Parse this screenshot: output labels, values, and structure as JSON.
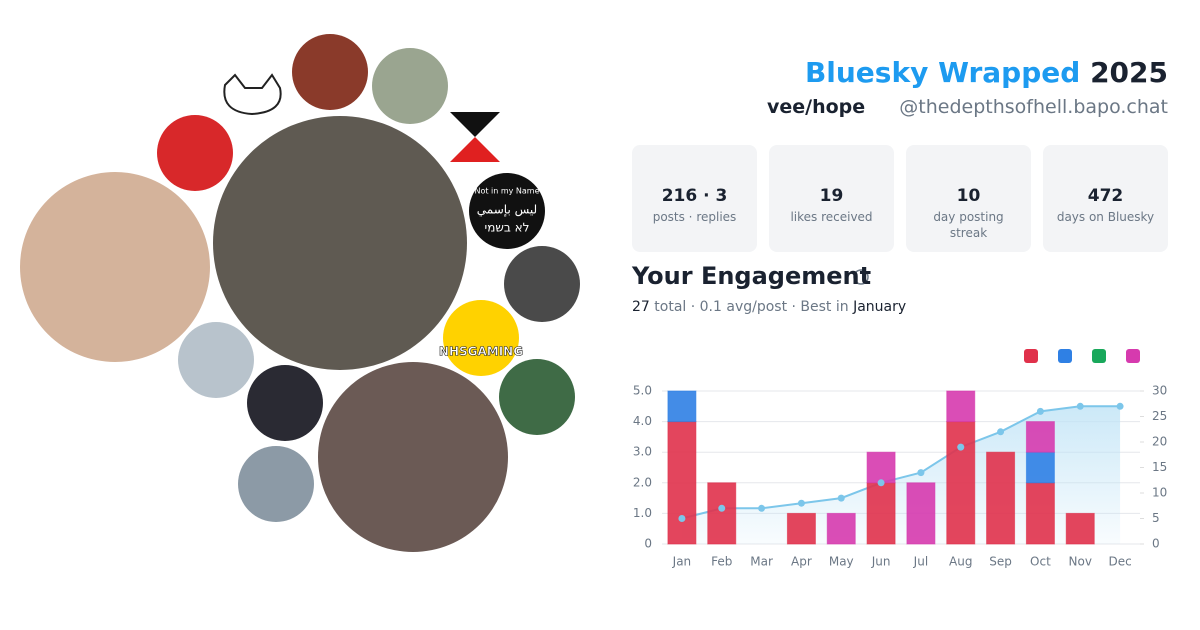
{
  "header": {
    "title_brand": "Bluesky Wrapped",
    "title_year": "2025",
    "display_name": "vee/hope",
    "handle": "@thedepthsofhell.bapo.chat"
  },
  "avatars": {
    "texts": [
      "Not in my Name",
      "ليس بإسمي",
      "לא בשמי",
      "NHSGAMING"
    ]
  },
  "stats": [
    {
      "value": "216 · 3",
      "label": "posts · replies"
    },
    {
      "value": "19",
      "label": "likes received"
    },
    {
      "value": "10",
      "label": "day posting streak"
    },
    {
      "value": "472",
      "label": "days on Bluesky"
    }
  ],
  "engagement": {
    "title": "Your Engagement",
    "total": "27",
    "summary": "total · 0.1 avg/post · Best in",
    "best": "January"
  },
  "chart_data": {
    "type": "bar",
    "categories": [
      "Jan",
      "Feb",
      "Mar",
      "Apr",
      "May",
      "Jun",
      "Jul",
      "Aug",
      "Sep",
      "Oct",
      "Nov",
      "Dec"
    ],
    "stacked": true,
    "series": [
      {
        "color": "#e0314b",
        "values": [
          4,
          2,
          0,
          1,
          0,
          2,
          0,
          4,
          3,
          2,
          1,
          0
        ]
      },
      {
        "color": "#2f80e4",
        "values": [
          1,
          0,
          0,
          0,
          0,
          0,
          0,
          0,
          0,
          1,
          0,
          0
        ]
      },
      {
        "color": "#19a85b",
        "values": [
          0,
          0,
          0,
          0,
          0,
          0,
          0,
          0,
          0,
          0,
          0,
          0
        ]
      },
      {
        "color": "#d63aae",
        "values": [
          0,
          0,
          0,
          0,
          1,
          1,
          2,
          1,
          0,
          1,
          0,
          0
        ]
      },
      {
        "type": "area",
        "axis": "y2",
        "color": "#7cc6ea",
        "values": [
          5,
          7,
          7,
          8,
          9,
          12,
          14,
          19,
          22,
          26,
          27,
          27
        ]
      }
    ],
    "ylim": [
      0,
      5
    ],
    "yticks": [
      0,
      {
        "value": 1,
        "label": "1.0"
      },
      {
        "value": 2,
        "label": "2.0"
      },
      {
        "value": 3,
        "label": "3.0"
      },
      {
        "value": 4,
        "label": "4.0"
      },
      {
        "value": 5,
        "label": "5.0"
      }
    ],
    "y2lim": [
      0,
      30
    ],
    "y2ticks": [
      0,
      5,
      10,
      15,
      20,
      25,
      30
    ],
    "grid": true,
    "legend": "top-right"
  }
}
